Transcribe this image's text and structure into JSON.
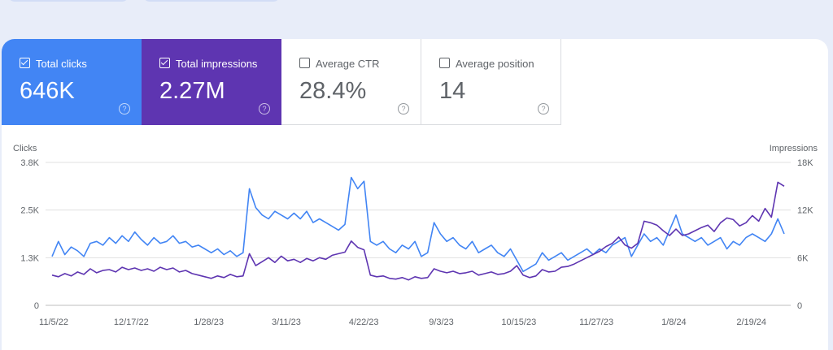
{
  "metrics": [
    {
      "label": "Total clicks",
      "value": "646K",
      "checked": true
    },
    {
      "label": "Total impressions",
      "value": "2.27M",
      "checked": true
    },
    {
      "label": "Average CTR",
      "value": "28.4%",
      "checked": false
    },
    {
      "label": "Average position",
      "value": "14",
      "checked": false
    }
  ],
  "colors": {
    "clicks": "#4285f4",
    "impressions": "#5e35b1",
    "grid": "#e0e0e0"
  },
  "chart_data": {
    "type": "line",
    "ylabel_left": "Clicks",
    "ylabel_right": "Impressions",
    "yticks_left": [
      "0",
      "1.3K",
      "2.5K",
      "3.8K"
    ],
    "yticks_right": [
      "0",
      "6K",
      "12K",
      "18K"
    ],
    "ylim_left": [
      0,
      3800
    ],
    "ylim_right": [
      0,
      18000
    ],
    "xticks": [
      "11/5/22",
      "12/17/22",
      "1/28/23",
      "3/11/23",
      "4/22/23",
      "9/3/23",
      "10/15/23",
      "11/27/23",
      "1/8/24",
      "2/19/24"
    ],
    "grid": true,
    "series": [
      {
        "name": "Clicks",
        "axis": "left",
        "values": [
          1300,
          1700,
          1350,
          1550,
          1450,
          1300,
          1650,
          1700,
          1600,
          1800,
          1650,
          1850,
          1700,
          1950,
          1750,
          1600,
          1800,
          1650,
          1700,
          1850,
          1650,
          1700,
          1550,
          1600,
          1500,
          1400,
          1500,
          1350,
          1450,
          1300,
          1400,
          3100,
          2600,
          2400,
          2300,
          2500,
          2400,
          2300,
          2450,
          2300,
          2500,
          2200,
          2300,
          2200,
          2100,
          2000,
          2150,
          3400,
          3100,
          3300,
          1700,
          1600,
          1700,
          1500,
          1400,
          1600,
          1500,
          1700,
          1300,
          1400,
          2200,
          1900,
          1700,
          1800,
          1600,
          1500,
          1700,
          1400,
          1500,
          1600,
          1400,
          1300,
          1500,
          1200,
          900,
          1000,
          1100,
          1400,
          1200,
          1300,
          1400,
          1200,
          1300,
          1400,
          1500,
          1350,
          1500,
          1400,
          1600,
          1700,
          1800,
          1300,
          1600,
          1900,
          1700,
          1800,
          1600,
          2000,
          2400,
          1900,
          1800,
          1700,
          1800,
          1600,
          1700,
          1800,
          1500,
          1700,
          1600,
          1800,
          1900,
          1800,
          1700,
          1900,
          2300,
          1900
        ],
        "x_index": [
          0,
          1,
          2,
          3,
          4,
          5,
          6,
          7,
          8,
          9,
          10,
          11,
          12,
          13,
          14,
          15,
          16,
          17,
          18,
          19,
          20,
          21,
          22,
          23,
          24,
          25,
          26,
          27,
          28,
          29,
          30,
          31,
          32,
          33,
          34,
          35,
          36,
          37,
          38,
          39,
          40,
          41,
          42,
          43,
          44,
          45,
          46,
          47,
          48,
          49,
          50,
          51,
          52,
          53,
          54,
          55,
          56,
          57,
          58,
          59,
          60,
          61,
          62,
          63,
          64,
          65,
          66,
          67,
          68,
          69,
          70,
          71,
          72,
          73,
          74,
          75,
          76,
          77,
          78,
          79,
          80,
          81,
          82,
          83,
          84,
          85,
          86,
          87,
          88,
          89,
          90,
          91,
          92,
          93,
          94,
          95,
          96,
          97,
          98,
          99,
          100,
          101,
          102,
          103,
          104,
          105,
          106,
          107,
          108,
          109,
          110,
          111,
          112,
          113,
          114,
          115
        ]
      },
      {
        "name": "Impressions",
        "axis": "right",
        "values": [
          3800,
          3600,
          4000,
          3700,
          4200,
          3900,
          4600,
          4100,
          4400,
          4500,
          4200,
          4800,
          4500,
          4700,
          4400,
          4600,
          4300,
          4800,
          4500,
          4700,
          4200,
          4400,
          4000,
          3800,
          3600,
          3400,
          3700,
          3500,
          3900,
          3600,
          3700,
          6500,
          5000,
          5500,
          6000,
          5400,
          6200,
          5600,
          5800,
          5400,
          5900,
          5600,
          6000,
          5800,
          6300,
          6500,
          6700,
          8100,
          7300,
          7000,
          3800,
          3600,
          3700,
          3400,
          3300,
          3500,
          3200,
          3600,
          3400,
          3500,
          4600,
          4300,
          4100,
          4300,
          4000,
          4100,
          4300,
          3800,
          4000,
          4200,
          3900,
          4000,
          4300,
          5000,
          3800,
          3500,
          3700,
          4500,
          4200,
          4300,
          4800,
          4900,
          5200,
          5600,
          6000,
          6400,
          6800,
          7400,
          7800,
          8600,
          7600,
          7200,
          7800,
          10600,
          10400,
          10100,
          9400,
          8800,
          9600,
          8800,
          9000,
          9400,
          9800,
          10100,
          9300,
          10400,
          11000,
          10800,
          10000,
          10400,
          11300,
          10600,
          12200,
          11100,
          15500,
          15000
        ],
        "x_index": [
          0,
          1,
          2,
          3,
          4,
          5,
          6,
          7,
          8,
          9,
          10,
          11,
          12,
          13,
          14,
          15,
          16,
          17,
          18,
          19,
          20,
          21,
          22,
          23,
          24,
          25,
          26,
          27,
          28,
          29,
          30,
          31,
          32,
          33,
          34,
          35,
          36,
          37,
          38,
          39,
          40,
          41,
          42,
          43,
          44,
          45,
          46,
          47,
          48,
          49,
          50,
          51,
          52,
          53,
          54,
          55,
          56,
          57,
          58,
          59,
          60,
          61,
          62,
          63,
          64,
          65,
          66,
          67,
          68,
          69,
          70,
          71,
          72,
          73,
          74,
          75,
          76,
          77,
          78,
          79,
          80,
          81,
          82,
          83,
          84,
          85,
          86,
          87,
          88,
          89,
          90,
          91,
          92,
          93,
          94,
          95,
          96,
          97,
          98,
          99,
          100,
          101,
          102,
          103,
          104,
          105,
          106,
          107,
          108,
          109,
          110,
          111,
          112,
          113,
          114,
          115
        ]
      }
    ]
  }
}
